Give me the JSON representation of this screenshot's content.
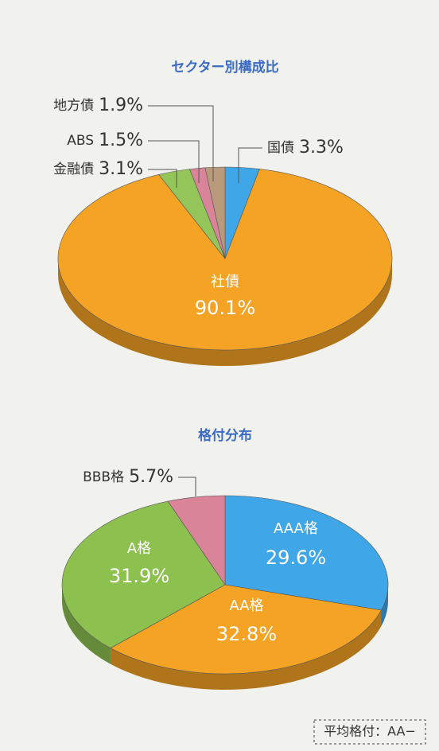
{
  "chart_data": [
    {
      "type": "pie",
      "title": "セクター別構成比",
      "categories": [
        "国債",
        "社債",
        "金融債",
        "ABS",
        "地方債"
      ],
      "values": [
        3.3,
        90.1,
        3.1,
        1.5,
        1.9
      ],
      "value_labels": [
        "3.3%",
        "90.1%",
        "3.1%",
        "1.5%",
        "1.9%"
      ],
      "colors": [
        "#3fa6e8",
        "#f4a325",
        "#93c55a",
        "#d98499",
        "#b99b7c"
      ]
    },
    {
      "type": "pie",
      "title": "格付分布",
      "categories": [
        "AAA格",
        "AA格",
        "A格",
        "BBB格"
      ],
      "values": [
        29.6,
        32.8,
        31.9,
        5.7
      ],
      "value_labels": [
        "29.6%",
        "32.8%",
        "31.9%",
        "5.7%"
      ],
      "colors": [
        "#3fa6e8",
        "#f4a325",
        "#8cc04f",
        "#d98499"
      ]
    }
  ],
  "note": "平均格付：AA−"
}
